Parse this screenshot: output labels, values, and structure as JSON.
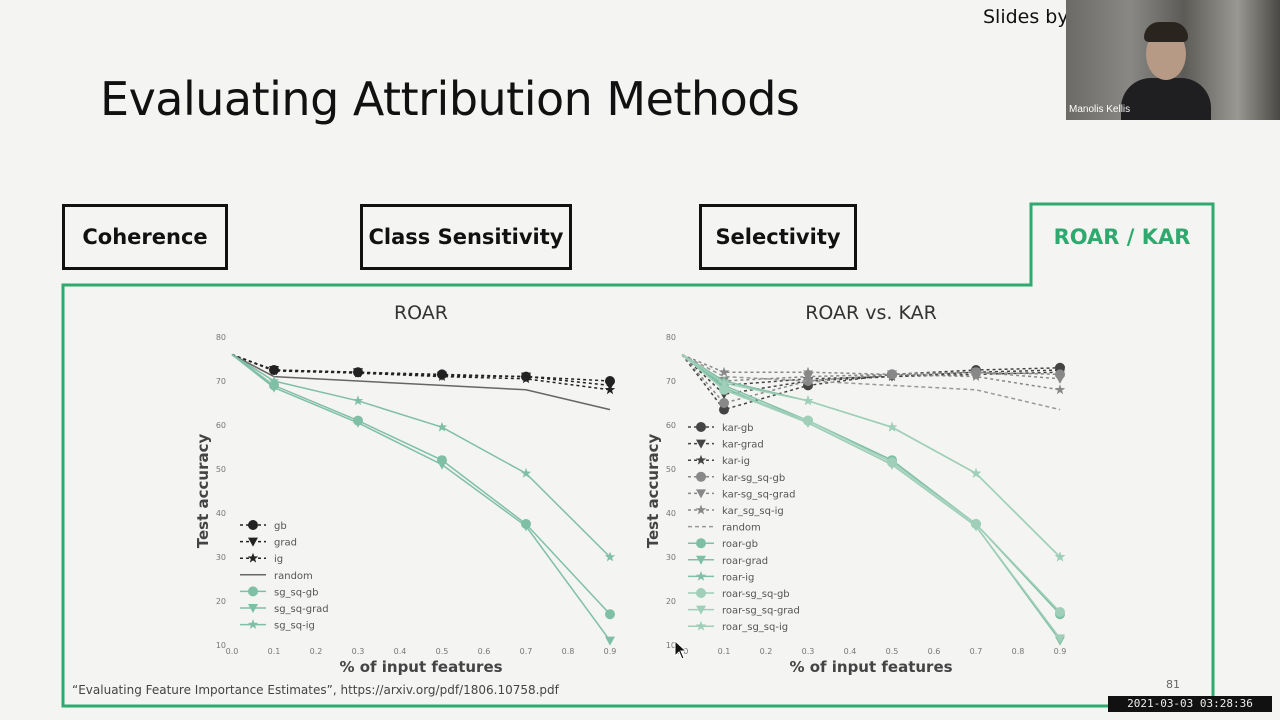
{
  "slide": {
    "title": "Evaluating Attribution Methods",
    "tabs": [
      "Coherence",
      "Class Sensitivity",
      "Selectivity",
      "ROAR / KAR"
    ],
    "caption": "“Evaluating Feature Importance Estimates”, https://arxiv.org/pdf/1806.10758.pdf",
    "page_number": "81",
    "accent_color": "#2eaa6e"
  },
  "overlay": {
    "slides_by": "Slides by",
    "presenter_name": "Manolis Kellis",
    "timestamp": "2021-03-03 03:28:36"
  },
  "chart_data": [
    {
      "type": "line",
      "title": "ROAR",
      "xlabel": "% of input features",
      "ylabel": "Test accuracy",
      "xlim": [
        0.0,
        0.9
      ],
      "ylim": [
        10,
        80
      ],
      "x_ticks": [
        "0.0",
        "0.1",
        "0.2",
        "0.3",
        "0.4",
        "0.5",
        "0.6",
        "0.7",
        "0.8",
        "0.9"
      ],
      "y_ticks": [
        "10",
        "20",
        "30",
        "40",
        "50",
        "60",
        "70",
        "80"
      ],
      "legend": "bottom-left",
      "x": [
        0.0,
        0.1,
        0.3,
        0.5,
        0.7,
        0.9
      ],
      "series": [
        {
          "name": "gb",
          "color": "#222",
          "marker": "circle",
          "dash": "3,3",
          "values": [
            76,
            72.5,
            72,
            71.5,
            71,
            70
          ]
        },
        {
          "name": "grad",
          "color": "#222",
          "marker": "tri",
          "dash": "3,3",
          "values": [
            76,
            72.5,
            72,
            71.2,
            71,
            69
          ]
        },
        {
          "name": "ig",
          "color": "#222",
          "marker": "star",
          "dash": "3,3",
          "values": [
            76,
            72.3,
            71.8,
            71,
            70.5,
            68
          ]
        },
        {
          "name": "random",
          "color": "#666",
          "marker": "none",
          "dash": "",
          "values": [
            76,
            71,
            70,
            69,
            68,
            63.5
          ]
        },
        {
          "name": "sg_sq-gb",
          "color": "#7fbfa6",
          "marker": "circle",
          "dash": "",
          "values": [
            76,
            69,
            61,
            52,
            37.5,
            17
          ]
        },
        {
          "name": "sg_sq-grad",
          "color": "#7fbfa6",
          "marker": "tri",
          "dash": "",
          "values": [
            76,
            68.5,
            60.5,
            51,
            37,
            11
          ]
        },
        {
          "name": "sg_sq-ig",
          "color": "#7fbfa6",
          "marker": "star",
          "dash": "",
          "values": [
            76,
            70,
            65.5,
            59.5,
            49,
            30
          ]
        }
      ]
    },
    {
      "type": "line",
      "title": "ROAR vs. KAR",
      "xlabel": "% of input features",
      "ylabel": "Test accuracy",
      "xlim": [
        0.0,
        0.9
      ],
      "ylim": [
        10,
        80
      ],
      "x_ticks": [
        "0.0",
        "0.1",
        "0.2",
        "0.3",
        "0.4",
        "0.5",
        "0.6",
        "0.7",
        "0.8",
        "0.9"
      ],
      "y_ticks": [
        "10",
        "20",
        "30",
        "40",
        "50",
        "60",
        "70",
        "80"
      ],
      "legend": "bottom-left",
      "x": [
        0.0,
        0.1,
        0.3,
        0.5,
        0.7,
        0.9
      ],
      "series": [
        {
          "name": "kar-gb",
          "color": "#444",
          "marker": "circle",
          "dash": "3,3",
          "values": [
            76,
            63.5,
            69,
            71.5,
            72.5,
            73
          ]
        },
        {
          "name": "kar-grad",
          "color": "#444",
          "marker": "tri",
          "dash": "3,3",
          "values": [
            76,
            67,
            70,
            71,
            72,
            72.5
          ]
        },
        {
          "name": "kar-ig",
          "color": "#444",
          "marker": "star",
          "dash": "3,3",
          "values": [
            76,
            69,
            70.5,
            71,
            71.5,
            72
          ]
        },
        {
          "name": "kar-sg_sq-gb",
          "color": "#888",
          "marker": "circle",
          "dash": "3,3",
          "values": [
            76,
            65,
            70,
            71.5,
            72,
            71.5
          ]
        },
        {
          "name": "kar-sg_sq-grad",
          "color": "#888",
          "marker": "tri",
          "dash": "3,3",
          "values": [
            76,
            70,
            71,
            71.5,
            72,
            70.5
          ]
        },
        {
          "name": "kar_sg_sq-ig",
          "color": "#888",
          "marker": "star",
          "dash": "3,3",
          "values": [
            76,
            72,
            72,
            71.5,
            71,
            68
          ]
        },
        {
          "name": "random",
          "color": "#999",
          "marker": "none",
          "dash": "4,3",
          "values": [
            76,
            71,
            70,
            69,
            68,
            63.5
          ]
        },
        {
          "name": "roar-gb",
          "color": "#7fbfa6",
          "marker": "circle",
          "dash": "",
          "values": [
            76,
            69,
            61,
            52,
            37.5,
            17
          ]
        },
        {
          "name": "roar-grad",
          "color": "#7fbfa6",
          "marker": "tri",
          "dash": "",
          "values": [
            76,
            68.5,
            60.5,
            51,
            37,
            11
          ]
        },
        {
          "name": "roar-ig",
          "color": "#7fbfa6",
          "marker": "star",
          "dash": "",
          "values": [
            76,
            70,
            65.5,
            59.5,
            49,
            30
          ]
        },
        {
          "name": "roar-sg_sq-gb",
          "color": "#9fcfb8",
          "marker": "circle",
          "dash": "",
          "values": [
            76,
            68,
            61,
            51.5,
            37.5,
            17.5
          ]
        },
        {
          "name": "roar-sg_sq-grad",
          "color": "#9fcfb8",
          "marker": "tri",
          "dash": "",
          "values": [
            76,
            68,
            60.5,
            51,
            37,
            11.5
          ]
        },
        {
          "name": "roar_sg_sq-ig",
          "color": "#9fcfb8",
          "marker": "star",
          "dash": "",
          "values": [
            76,
            69.5,
            65.5,
            59.5,
            49,
            30
          ]
        }
      ]
    }
  ]
}
